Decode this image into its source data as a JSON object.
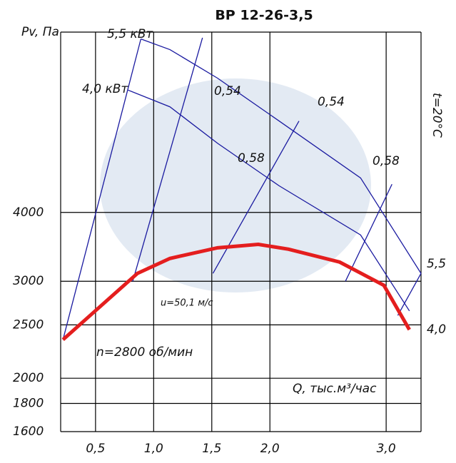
{
  "chart_data": {
    "type": "line",
    "title": "ВР 12-26-3,5",
    "y_label": "Pv, Па",
    "x_label": "Q, тыс.м³/час",
    "ylog": true,
    "xlim": [
      0.2,
      3.3
    ],
    "ylim": [
      1600,
      8500
    ],
    "xticks": [
      {
        "value": 0.5,
        "label": "0,5"
      },
      {
        "value": 1.0,
        "label": "1,0"
      },
      {
        "value": 1.5,
        "label": "1,5"
      },
      {
        "value": 2.0,
        "label": "2,0"
      },
      {
        "value": 3.0,
        "label": "3,0"
      }
    ],
    "yticks": [
      1600,
      1800,
      2000,
      2500,
      3000,
      4000
    ],
    "grid": true,
    "series": [
      {
        "color": "#e41e1e",
        "x": [
          0.22,
          0.86,
          1.14,
          1.55,
          1.9,
          2.16,
          2.6,
          2.98,
          3.2
        ],
        "values": [
          2350,
          3100,
          3300,
          3450,
          3500,
          3430,
          3250,
          2950,
          2450
        ]
      },
      {
        "color": "#1a1aa0",
        "x": [
          0.89,
          1.14,
          1.55,
          2.08,
          2.78,
          3.3
        ],
        "values": [
          8260,
          7900,
          7010,
          5860,
          4620,
          3100
        ]
      },
      {
        "color": "#1a1aa0",
        "x": [
          0.78,
          1.14,
          1.55,
          2.08,
          2.78,
          3.2
        ],
        "values": [
          6670,
          6220,
          5340,
          4470,
          3640,
          2650
        ]
      }
    ],
    "reference_lines": [
      {
        "x": [
          0.22,
          0.89
        ],
        "values": [
          2350,
          8260
        ]
      },
      {
        "x": [
          0.82,
          1.42
        ],
        "values": [
          3000,
          8300
        ]
      },
      {
        "x": [
          1.51,
          2.25
        ],
        "values": [
          3100,
          5860
        ]
      },
      {
        "x": [
          2.65,
          3.05
        ],
        "values": [
          3000,
          4500
        ]
      },
      {
        "x": [
          3.1,
          3.3
        ],
        "values": [
          2600,
          3100
        ]
      }
    ],
    "annotations": [
      "5,5 кВт",
      "4,0 кВт",
      "0,54",
      "0,54",
      "0,58",
      "0,58",
      "t=20°C",
      "5,5",
      "4,0",
      "u=50,1 м/с",
      "n=2800 об/мин"
    ]
  }
}
